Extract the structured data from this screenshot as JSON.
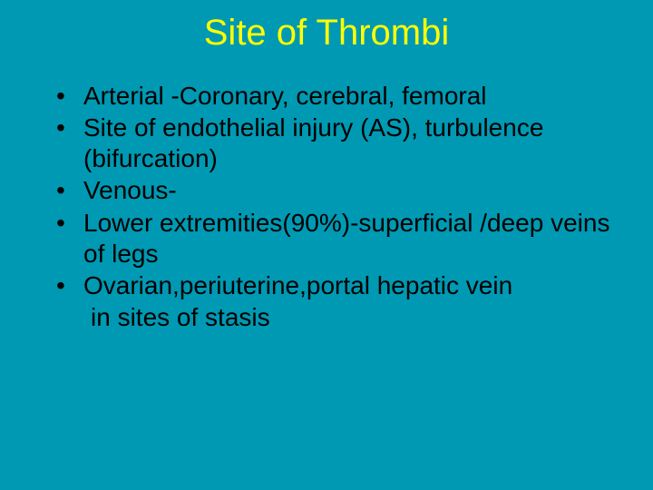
{
  "slide": {
    "title": "Site of Thrombi",
    "title_color": "#ffff00",
    "background_color": "#0099b3",
    "text_color": "#000000",
    "title_fontsize": 40,
    "body_fontsize": 28,
    "bullets": [
      "Arterial -Coronary, cerebral, femoral",
      "Site of endothelial injury (AS), turbulence (bifurcation)",
      "Venous-",
      "Lower extremities(90%)-superficial /deep veins of legs",
      "Ovarian,periuterine,portal hepatic vein"
    ],
    "continuation_line": " in sites of stasis"
  }
}
